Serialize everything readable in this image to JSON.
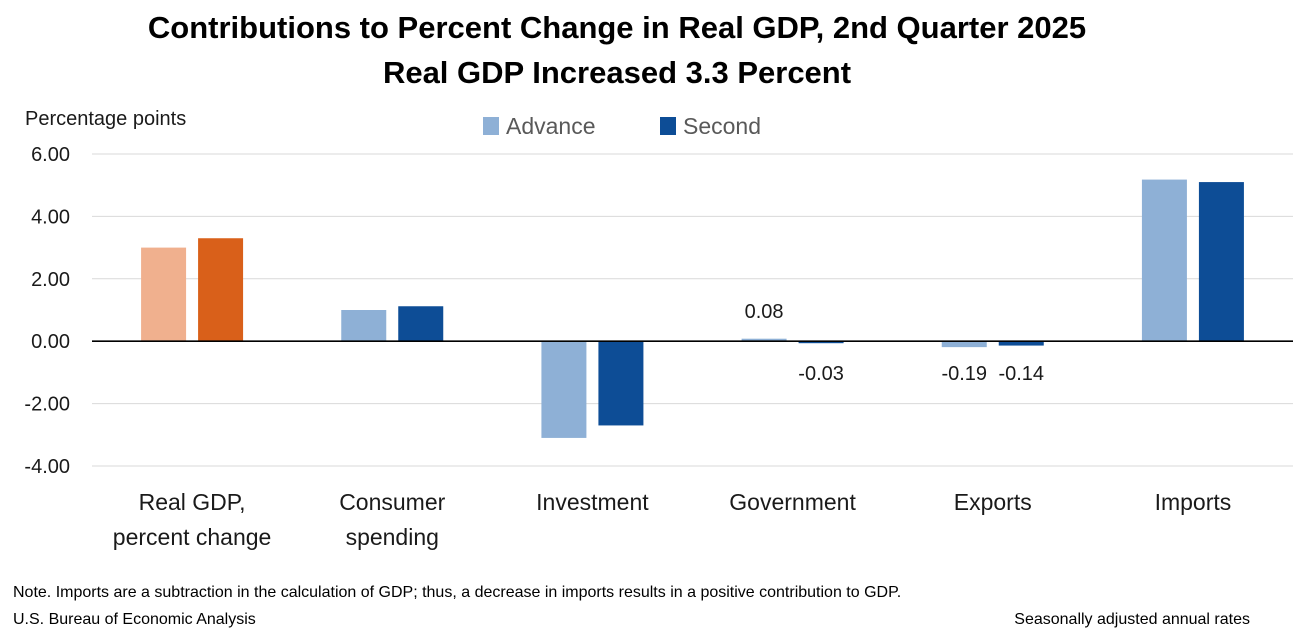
{
  "chart_data": {
    "type": "bar",
    "title": "Contributions to Percent Change in Real GDP, 2nd Quarter 2025",
    "subtitle": "Real GDP Increased 3.3 Percent",
    "ylabel": "Percentage points",
    "ylim": [
      -4,
      6
    ],
    "yticks": [
      "6.00",
      "4.00",
      "2.00",
      "0.00",
      "-2.00",
      "-4.00"
    ],
    "ytick_values": [
      6,
      4,
      2,
      0,
      -2,
      -4
    ],
    "grid": true,
    "legend_position": "top-center",
    "categories": [
      [
        "Real GDP,",
        "percent change"
      ],
      [
        "Consumer",
        "spending"
      ],
      [
        "Investment"
      ],
      [
        "Government"
      ],
      [
        "Exports"
      ],
      [
        "Imports"
      ]
    ],
    "series": [
      {
        "name": "Advance",
        "color": "#8eb0d6",
        "highlight_color": "#f0b08e",
        "values": [
          3.0,
          1.0,
          -3.1,
          0.08,
          -0.19,
          5.18
        ]
      },
      {
        "name": "Second",
        "color": "#0d4d96",
        "highlight_color": "#d9601a",
        "values": [
          3.3,
          1.12,
          -2.7,
          -0.03,
          -0.14,
          5.1
        ]
      }
    ],
    "data_labels": [
      {
        "category": 3,
        "series": 0,
        "text": "0.08"
      },
      {
        "category": 3,
        "series": 1,
        "text": "-0.03"
      },
      {
        "category": 4,
        "series": 0,
        "text": "-0.19"
      },
      {
        "category": 4,
        "series": 1,
        "text": "-0.14"
      }
    ]
  },
  "footer": {
    "note": "Note. Imports are a subtraction in the calculation of GDP; thus, a decrease in imports results in a positive contribution to GDP.",
    "source": "U.S. Bureau of Economic Analysis",
    "rates": "Seasonally adjusted annual rates"
  }
}
